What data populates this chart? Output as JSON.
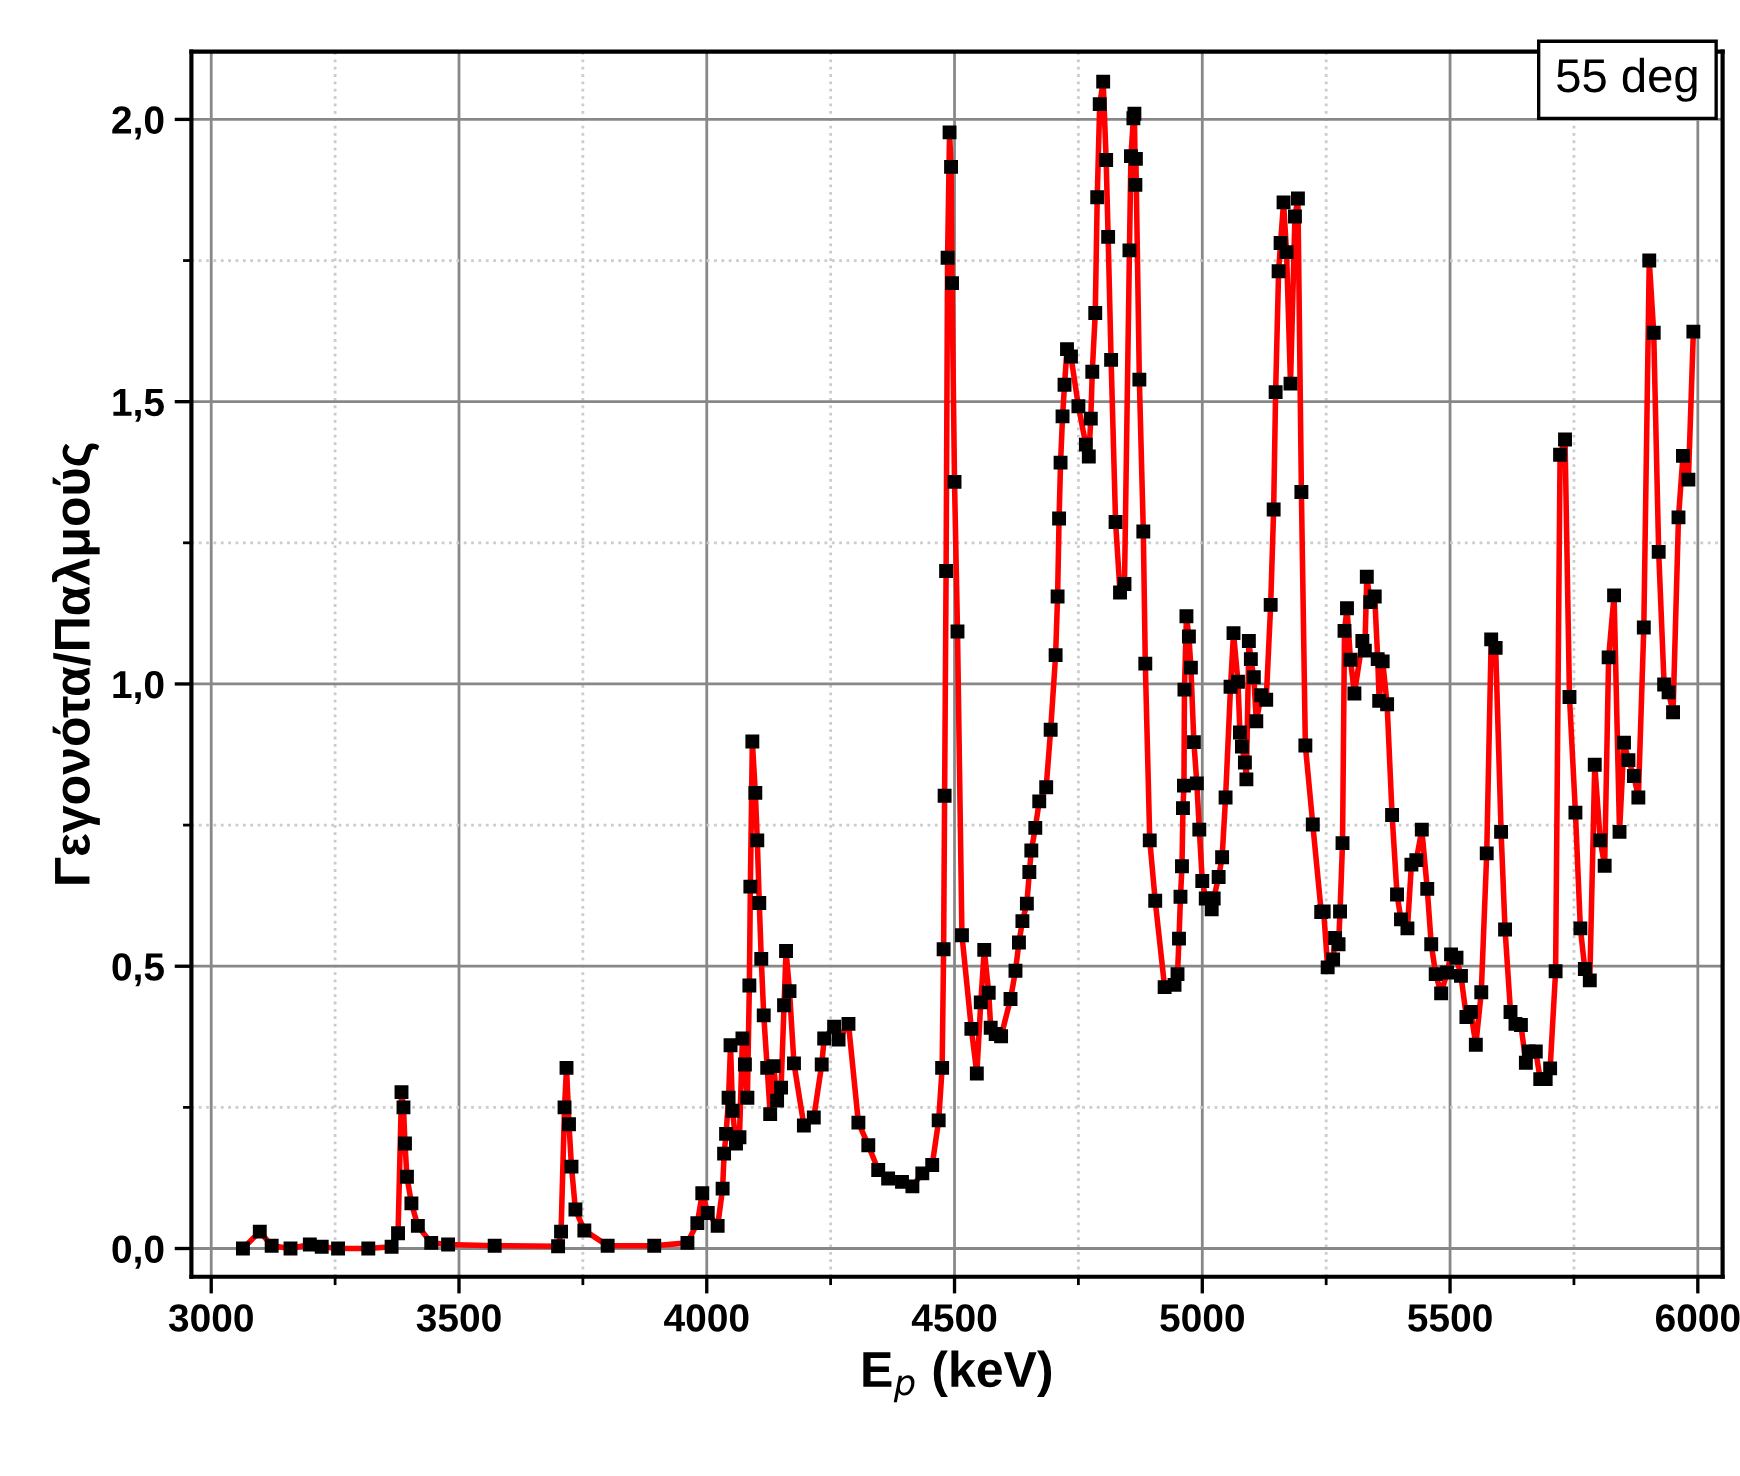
{
  "chart_data": {
    "type": "line",
    "xlabel": "E$_{p}$ (keV)",
    "ylabel": "Γεγονότα/Παλμούς",
    "annotations": [
      "55 deg"
    ],
    "xlim": [
      2960,
      6050
    ],
    "ylim": [
      -0.05,
      2.12
    ],
    "xticks": [
      3000,
      3500,
      4000,
      4500,
      5000,
      5500,
      6000
    ],
    "yticks": [
      {
        "value": 0,
        "label": "0,0"
      },
      {
        "value": 0.5,
        "label": "0,5"
      },
      {
        "value": 1.0,
        "label": "1,0"
      },
      {
        "value": 1.5,
        "label": "1,5"
      },
      {
        "value": 2.0,
        "label": "2,0"
      }
    ],
    "grid": true,
    "legend": false,
    "marker": "square",
    "line_style": "solid",
    "series": [
      {
        "color": "#ff0000",
        "x": [
          3064,
          3098,
          3122,
          3160,
          3199,
          3223,
          3256,
          3317,
          3364,
          3377,
          3384,
          3388,
          3391,
          3395,
          3404,
          3417,
          3444,
          3478,
          3572,
          3700,
          3706,
          3713,
          3717,
          3722,
          3727,
          3735,
          3753,
          3800,
          3894,
          3961,
          3981,
          3991,
          4002,
          4022,
          4032,
          4035,
          4039,
          4044,
          4048,
          4052,
          4059,
          4066,
          4072,
          4077,
          4082,
          4086,
          4088,
          4092,
          4098,
          4102,
          4106,
          4110,
          4115,
          4122,
          4128,
          4135,
          4142,
          4150,
          4156,
          4160,
          4167,
          4176,
          4196,
          4216,
          4232,
          4237,
          4257,
          4266,
          4286,
          4306,
          4326,
          4346,
          4366,
          4394,
          4415,
          4435,
          4455,
          4468,
          4475,
          4478,
          4480,
          4483,
          4486,
          4490,
          4493,
          4495,
          4500,
          4506,
          4515,
          4534,
          4545,
          4553,
          4560,
          4569,
          4573,
          4583,
          4594,
          4613,
          4623,
          4630,
          4637,
          4646,
          4651,
          4655,
          4663,
          4671,
          4685,
          4694,
          4704,
          4708,
          4711,
          4714,
          4718,
          4722,
          4727,
          4735,
          4750,
          4765,
          4771,
          4775,
          4778,
          4784,
          4788,
          4793,
          4800,
          4806,
          4810,
          4816,
          4825,
          4834,
          4843,
          4853,
          4856,
          4861,
          4863,
          4865,
          4866,
          4873,
          4881,
          4885,
          4894,
          4905,
          4924,
          4944,
          4950,
          4953,
          4956,
          4959,
          4961,
          4963,
          4964,
          4968,
          4973,
          4977,
          4983,
          4989,
          4994,
          5000,
          5007,
          5019,
          5023,
          5033,
          5040,
          5047,
          5057,
          5063,
          5072,
          5076,
          5080,
          5086,
          5089,
          5094,
          5098,
          5104,
          5109,
          5119,
          5129,
          5138,
          5144,
          5148,
          5154,
          5158,
          5164,
          5170,
          5178,
          5187,
          5193,
          5200,
          5208,
          5223,
          5240,
          5245,
          5253,
          5264,
          5268,
          5275,
          5278,
          5283,
          5287,
          5292,
          5299,
          5307,
          5323,
          5328,
          5332,
          5339,
          5348,
          5354,
          5357,
          5364,
          5373,
          5383,
          5393,
          5401,
          5414,
          5422,
          5432,
          5443,
          5454,
          5462,
          5471,
          5482,
          5494,
          5502,
          5513,
          5522,
          5533,
          5542,
          5552,
          5563,
          5574,
          5583,
          5592,
          5603,
          5611,
          5622,
          5632,
          5643,
          5653,
          5659,
          5673,
          5682,
          5693,
          5702,
          5713,
          5722,
          5732,
          5741,
          5753,
          5763,
          5772,
          5782,
          5792,
          5803,
          5812,
          5820,
          5831,
          5842,
          5851,
          5860,
          5871,
          5880,
          5891,
          5902,
          5911,
          5921,
          5932,
          5941,
          5950,
          5961,
          5970,
          5981,
          5991
        ],
        "values": [
          0.0,
          0.03,
          0.005,
          0.0,
          0.007,
          0.003,
          0.0,
          0.0,
          0.003,
          0.027,
          0.277,
          0.25,
          0.186,
          0.127,
          0.08,
          0.04,
          0.01,
          0.007,
          0.005,
          0.004,
          0.03,
          0.25,
          0.32,
          0.22,
          0.145,
          0.069,
          0.032,
          0.005,
          0.005,
          0.01,
          0.045,
          0.098,
          0.063,
          0.04,
          0.106,
          0.168,
          0.203,
          0.267,
          0.36,
          0.244,
          0.186,
          0.197,
          0.372,
          0.326,
          0.267,
          0.466,
          0.641,
          0.898,
          0.807,
          0.723,
          0.612,
          0.513,
          0.413,
          0.32,
          0.238,
          0.323,
          0.262,
          0.285,
          0.431,
          0.527,
          0.456,
          0.328,
          0.218,
          0.232,
          0.326,
          0.372,
          0.393,
          0.37,
          0.398,
          0.223,
          0.183,
          0.139,
          0.124,
          0.118,
          0.11,
          0.133,
          0.148,
          0.227,
          0.32,
          0.53,
          0.802,
          1.2,
          1.755,
          1.977,
          1.916,
          1.71,
          1.358,
          1.093,
          0.555,
          0.389,
          0.31,
          0.436,
          0.529,
          0.453,
          0.391,
          0.38,
          0.376,
          0.442,
          0.492,
          0.542,
          0.58,
          0.611,
          0.667,
          0.705,
          0.745,
          0.792,
          0.817,
          0.919,
          1.051,
          1.155,
          1.293,
          1.392,
          1.474,
          1.53,
          1.593,
          1.58,
          1.492,
          1.424,
          1.403,
          1.47,
          1.553,
          1.657,
          1.862,
          2.027,
          2.067,
          1.928,
          1.792,
          1.574,
          1.287,
          1.162,
          1.177,
          1.768,
          1.935,
          2.002,
          2.01,
          1.884,
          1.93,
          1.539,
          1.27,
          1.036,
          0.723,
          0.616,
          0.463,
          0.467,
          0.486,
          0.549,
          0.623,
          0.677,
          0.78,
          0.82,
          0.99,
          1.12,
          1.084,
          1.029,
          0.897,
          0.824,
          0.742,
          0.651,
          0.62,
          0.601,
          0.62,
          0.658,
          0.693,
          0.799,
          0.995,
          1.09,
          1.004,
          0.914,
          0.889,
          0.861,
          0.831,
          1.076,
          1.044,
          1.012,
          0.934,
          0.98,
          0.972,
          1.14,
          1.309,
          1.517,
          1.731,
          1.781,
          1.853,
          1.765,
          1.532,
          1.828,
          1.86,
          1.34,
          0.891,
          0.751,
          0.596,
          0.597,
          0.498,
          0.512,
          0.55,
          0.539,
          0.597,
          0.718,
          1.094,
          1.134,
          1.043,
          0.983,
          1.076,
          1.059,
          1.19,
          1.145,
          1.155,
          1.044,
          0.97,
          1.04,
          0.964,
          0.768,
          0.627,
          0.583,
          0.567,
          0.68,
          0.688,
          0.742,
          0.637,
          0.539,
          0.486,
          0.452,
          0.489,
          0.521,
          0.515,
          0.483,
          0.41,
          0.419,
          0.361,
          0.454,
          0.7,
          1.079,
          1.064,
          0.738,
          0.565,
          0.419,
          0.398,
          0.396,
          0.329,
          0.349,
          0.349,
          0.3,
          0.3,
          0.319,
          0.491,
          1.406,
          1.433,
          0.977,
          0.772,
          0.567,
          0.495,
          0.475,
          0.857,
          0.723,
          0.678,
          1.047,
          1.157,
          0.738,
          0.896,
          0.865,
          0.837,
          0.799,
          1.1,
          1.75,
          1.622,
          1.234,
          0.999,
          0.985,
          0.95,
          1.295,
          1.404,
          1.362,
          1.624
        ]
      }
    ]
  }
}
